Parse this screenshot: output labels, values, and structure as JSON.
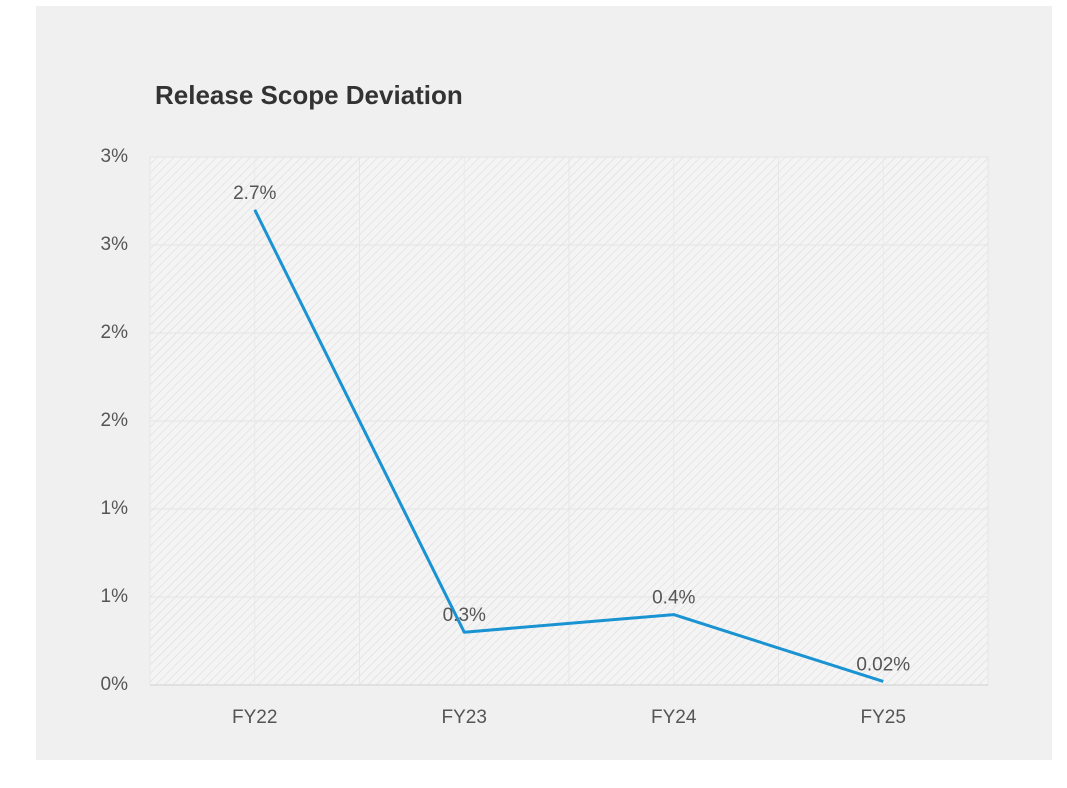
{
  "chart_data": {
    "type": "line",
    "title": "Release Scope Deviation",
    "categories": [
      "FY22",
      "FY23",
      "FY24",
      "FY25"
    ],
    "series": [
      {
        "color": "#1a93d2",
        "values": [
          2.7,
          0.3,
          0.4,
          0.02
        ],
        "value_labels": [
          "2.7%",
          "0.3%",
          "0.4%",
          "0.02%"
        ]
      }
    ],
    "ylim": [
      0,
      3
    ],
    "yticks": [
      {
        "value": 0,
        "label": "0%"
      },
      {
        "value": 0.5,
        "label": "1%"
      },
      {
        "value": 1,
        "label": "1%"
      },
      {
        "value": 1.5,
        "label": "2%"
      },
      {
        "value": 2,
        "label": "2%"
      },
      {
        "value": 2.5,
        "label": "3%"
      },
      {
        "value": 3,
        "label": "3%"
      }
    ],
    "grid": true
  }
}
